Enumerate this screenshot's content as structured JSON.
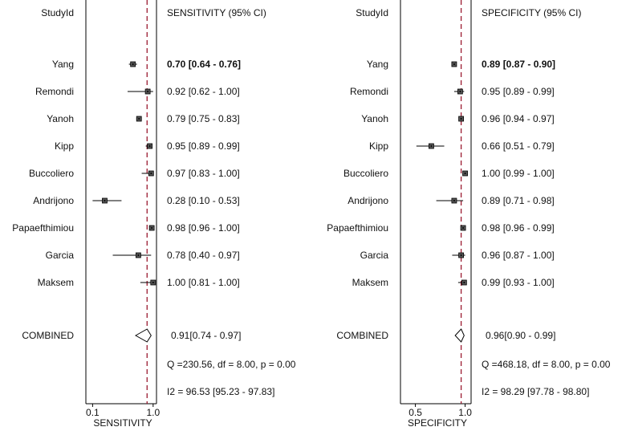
{
  "chart_data": [
    {
      "type": "forest",
      "header_study": "StudyId",
      "header_estimate": "SENSITIVITY (95% CI)",
      "xlabel": "SENSITIVITY",
      "xlim": [
        0,
        1.05
      ],
      "xticks": [
        0.1,
        1.0
      ],
      "xtick_labels": [
        "0.1",
        "1.0"
      ],
      "reference_line": 0.91,
      "studies": [
        {
          "name": "Yang",
          "est": 0.7,
          "lo": 0.64,
          "hi": 0.76,
          "label": "0.70 [0.64 - 0.76]",
          "bold": true
        },
        {
          "name": "Remondi",
          "est": 0.92,
          "lo": 0.62,
          "hi": 1.0,
          "label": "0.92 [0.62 - 1.00]"
        },
        {
          "name": "Yanoh",
          "est": 0.79,
          "lo": 0.75,
          "hi": 0.83,
          "label": "0.79 [0.75 - 0.83]"
        },
        {
          "name": "Kipp",
          "est": 0.95,
          "lo": 0.89,
          "hi": 0.99,
          "label": "0.95 [0.89 - 0.99]"
        },
        {
          "name": "Buccoliero",
          "est": 0.97,
          "lo": 0.83,
          "hi": 1.0,
          "label": "0.97 [0.83 - 1.00]"
        },
        {
          "name": "Andrijono",
          "est": 0.28,
          "lo": 0.1,
          "hi": 0.53,
          "label": "0.28 [0.10 - 0.53]"
        },
        {
          "name": "Papaefthimiou",
          "est": 0.98,
          "lo": 0.96,
          "hi": 1.0,
          "label": "0.98 [0.96 - 1.00]"
        },
        {
          "name": "Garcia",
          "est": 0.78,
          "lo": 0.4,
          "hi": 0.97,
          "label": "0.78 [0.40 - 0.97]"
        },
        {
          "name": "Maksem",
          "est": 1.0,
          "lo": 0.81,
          "hi": 1.0,
          "label": "1.00 [0.81 - 1.00]"
        }
      ],
      "combined": {
        "name": "COMBINED",
        "est": 0.91,
        "lo": 0.74,
        "hi": 0.97,
        "label": "0.91[0.74 - 0.97]"
      },
      "heterogeneity_q": "Q =230.56, df = 8.00, p =  0.00",
      "heterogeneity_i2": "I2 = 96.53 [95.23 - 97.83]"
    },
    {
      "type": "forest",
      "header_study": "StudyId",
      "header_estimate": "SPECIFICITY (95% CI)",
      "xlabel": "SPECIFICITY",
      "xlim": [
        0.35,
        1.06
      ],
      "xticks": [
        0.5,
        1.0
      ],
      "xtick_labels": [
        "0.5",
        "1.0"
      ],
      "reference_line": 0.96,
      "studies": [
        {
          "name": "Yang",
          "est": 0.89,
          "lo": 0.87,
          "hi": 0.9,
          "label": "0.89 [0.87 - 0.90]",
          "bold": true
        },
        {
          "name": "Remondi",
          "est": 0.95,
          "lo": 0.89,
          "hi": 0.99,
          "label": "0.95 [0.89 - 0.99]"
        },
        {
          "name": "Yanoh",
          "est": 0.96,
          "lo": 0.94,
          "hi": 0.97,
          "label": "0.96 [0.94 - 0.97]"
        },
        {
          "name": "Kipp",
          "est": 0.66,
          "lo": 0.51,
          "hi": 0.79,
          "label": "0.66 [0.51 - 0.79]"
        },
        {
          "name": "Buccoliero",
          "est": 1.0,
          "lo": 0.99,
          "hi": 1.0,
          "label": "1.00 [0.99 - 1.00]"
        },
        {
          "name": "Andrijono",
          "est": 0.89,
          "lo": 0.71,
          "hi": 0.98,
          "label": "0.89 [0.71 - 0.98]"
        },
        {
          "name": "Papaefthimiou",
          "est": 0.98,
          "lo": 0.96,
          "hi": 0.99,
          "label": "0.98 [0.96 - 0.99]"
        },
        {
          "name": "Garcia",
          "est": 0.96,
          "lo": 0.87,
          "hi": 1.0,
          "label": "0.96 [0.87 - 1.00]"
        },
        {
          "name": "Maksem",
          "est": 0.99,
          "lo": 0.93,
          "hi": 1.0,
          "label": "0.99 [0.93 - 1.00]"
        }
      ],
      "combined": {
        "name": "COMBINED",
        "est": 0.96,
        "lo": 0.9,
        "hi": 0.99,
        "label": "0.96[0.90 - 0.99]"
      },
      "heterogeneity_q": "Q =468.18, df = 8.00, p =  0.00",
      "heterogeneity_i2": "I2 = 98.29 [97.78 - 98.80]"
    }
  ]
}
